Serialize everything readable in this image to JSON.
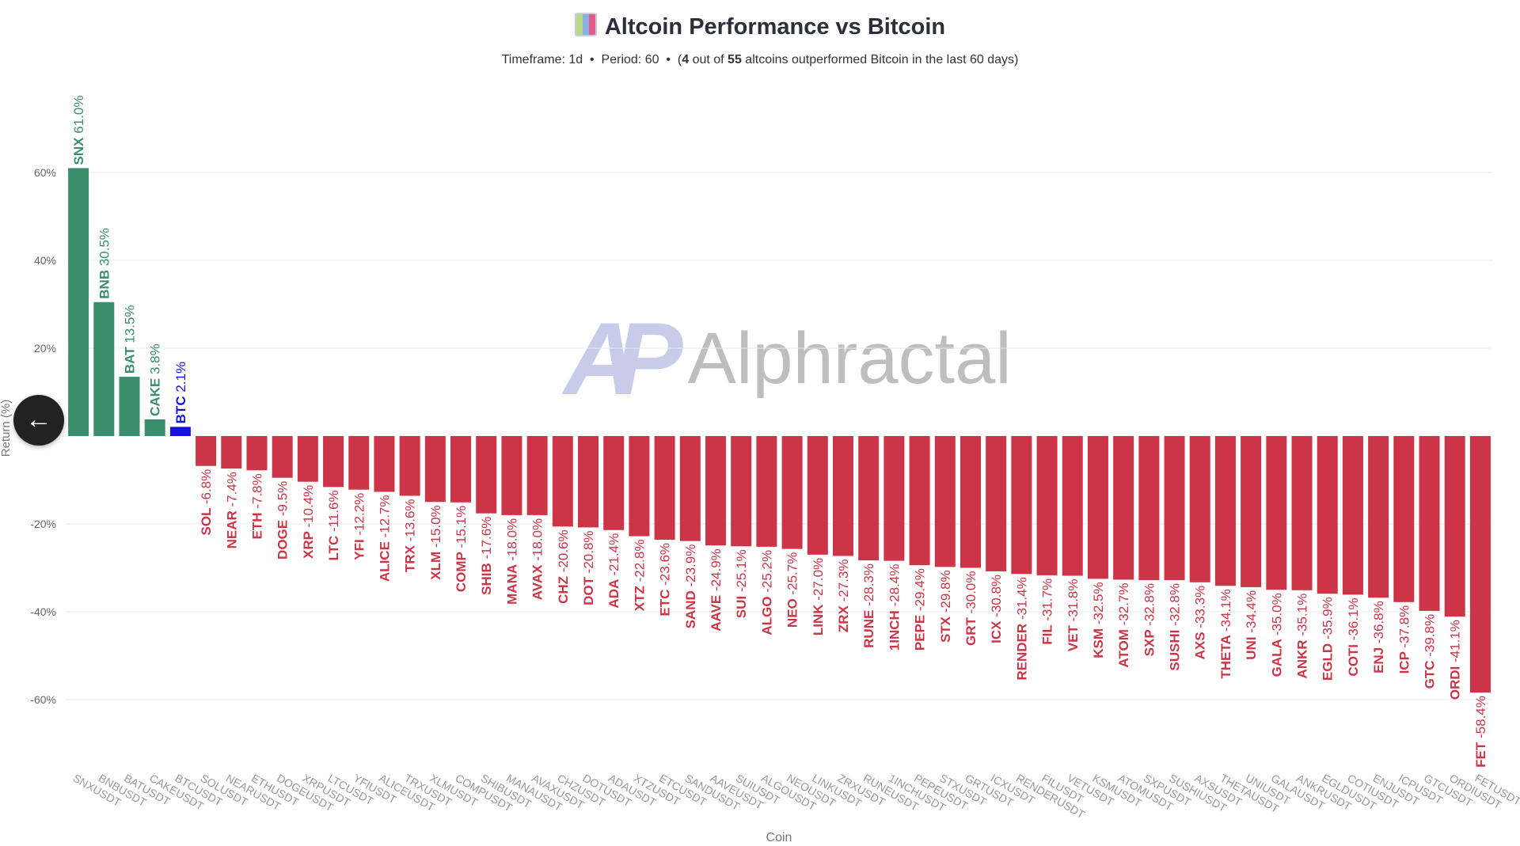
{
  "header": {
    "title": "Altcoin Performance vs Bitcoin",
    "timeframe_label": "Timeframe: 1d",
    "period_label": "Period: 60",
    "outperf_count": "4",
    "out_of_text": "out of",
    "total_count": "55",
    "outperf_suffix": "altcoins outperformed Bitcoin in the last 60 days)",
    "open_paren": "(",
    "sep": "•"
  },
  "watermark": "Alphractal",
  "watermark_logo": "AP",
  "back_button_icon": "arrow-left-icon",
  "colors": {
    "positive": "#3b8e6c",
    "negative": "#cc3547",
    "btc": "#1515d6"
  },
  "chart_data": {
    "type": "bar",
    "title": "Altcoin Performance vs Bitcoin",
    "xlabel": "Coin",
    "ylabel": "Return (%)",
    "ylim": [
      -75,
      80
    ],
    "yticks": [
      60,
      40,
      20,
      -20,
      -40,
      -60
    ],
    "ytick_labels": [
      "60%",
      "40%",
      "20%",
      "-20%",
      "-40%",
      "-60%"
    ],
    "grid": true,
    "categories": [
      "SNXUSDT",
      "BNBUSDT",
      "BATUSDT",
      "CAKEUSDT",
      "BTCUSDT",
      "SOLUSDT",
      "NEARUSDT",
      "ETHUSDT",
      "DOGEUSDT",
      "XRPUSDT",
      "LTCUSDT",
      "YFIUSDT",
      "ALICEUSDT",
      "TRXUSDT",
      "XLMUSDT",
      "COMPUSDT",
      "SHIBUSDT",
      "MANAUSDT",
      "AVAXUSDT",
      "CHZUSDT",
      "DOTUSDT",
      "ADAUSDT",
      "XTZUSDT",
      "ETCUSDT",
      "SANDUSDT",
      "AAVEUSDT",
      "SUIUSDT",
      "ALGOUSDT",
      "NEOUSDT",
      "LINKUSDT",
      "ZRXUSDT",
      "RUNEUSDT",
      "1INCHUSDT",
      "PEPEUSDT",
      "STXUSDT",
      "GRTUSDT",
      "ICXUSDT",
      "RENDERUSDT",
      "FILUSDT",
      "VETUSDT",
      "KSMUSDT",
      "ATOMUSDT",
      "SXPUSDT",
      "SUSHIUSDT",
      "AXSUSDT",
      "THETAUSDT",
      "UNIUSDT",
      "GALAUSDT",
      "ANKRUSDT",
      "EGLDUSDT",
      "COTIUSDT",
      "ENJUSDT",
      "ICPUSDT",
      "GTCUSDT",
      "ORDIUSDT",
      "FETUSDT"
    ],
    "symbols": [
      "SNX",
      "BNB",
      "BAT",
      "CAKE",
      "BTC",
      "SOL",
      "NEAR",
      "ETH",
      "DOGE",
      "XRP",
      "LTC",
      "YFI",
      "ALICE",
      "TRX",
      "XLM",
      "COMP",
      "SHIB",
      "MANA",
      "AVAX",
      "CHZ",
      "DOT",
      "ADA",
      "XTZ",
      "ETC",
      "SAND",
      "AAVE",
      "SUI",
      "ALGO",
      "NEO",
      "LINK",
      "ZRX",
      "RUNE",
      "1INCH",
      "PEPE",
      "STX",
      "GRT",
      "ICX",
      "RENDER",
      "FIL",
      "VET",
      "KSM",
      "ATOM",
      "SXP",
      "SUSHI",
      "AXS",
      "THETA",
      "UNI",
      "GALA",
      "ANKR",
      "EGLD",
      "COTI",
      "ENJ",
      "ICP",
      "GTC",
      "ORDI",
      "FET"
    ],
    "values": [
      61.0,
      30.5,
      13.5,
      3.8,
      2.1,
      -6.8,
      -7.4,
      -7.8,
      -9.5,
      -10.4,
      -11.6,
      -12.2,
      -12.7,
      -13.6,
      -15.0,
      -15.1,
      -17.6,
      -18.0,
      -18.0,
      -20.6,
      -20.8,
      -21.4,
      -22.8,
      -23.6,
      -23.9,
      -24.9,
      -25.1,
      -25.2,
      -25.7,
      -27.0,
      -27.3,
      -28.3,
      -28.4,
      -29.4,
      -29.8,
      -30.0,
      -30.8,
      -31.4,
      -31.7,
      -31.8,
      -32.5,
      -32.7,
      -32.8,
      -32.8,
      -33.3,
      -34.1,
      -34.4,
      -35.0,
      -35.1,
      -35.9,
      -36.1,
      -36.8,
      -37.8,
      -39.8,
      -41.1,
      -58.4
    ],
    "data_labels": [
      "61.0%",
      "30.5%",
      "13.5%",
      "3.8%",
      "2.1%",
      "-6.8%",
      "-7.4%",
      "-7.8%",
      "-9.5%",
      "-10.4%",
      "-11.6%",
      "-12.2%",
      "-12.7%",
      "-13.6%",
      "-15.0%",
      "-15.1%",
      "-17.6%",
      "-18.0%",
      "-18.0%",
      "-20.6%",
      "-20.8%",
      "-21.4%",
      "-22.8%",
      "-23.6%",
      "-23.9%",
      "-24.9%",
      "-25.1%",
      "-25.2%",
      "-25.7%",
      "-27.0%",
      "-27.3%",
      "-28.3%",
      "-28.4%",
      "-29.4%",
      "-29.8%",
      "-30.0%",
      "-30.8%",
      "-31.4%",
      "-31.7%",
      "-31.8%",
      "-32.5%",
      "-32.7%",
      "-32.8%",
      "-32.8%",
      "-33.3%",
      "-34.1%",
      "-34.4%",
      "-35.0%",
      "-35.1%",
      "-35.9%",
      "-36.1%",
      "-36.8%",
      "-37.8%",
      "-39.8%",
      "-41.1%",
      "-58.4%"
    ]
  }
}
